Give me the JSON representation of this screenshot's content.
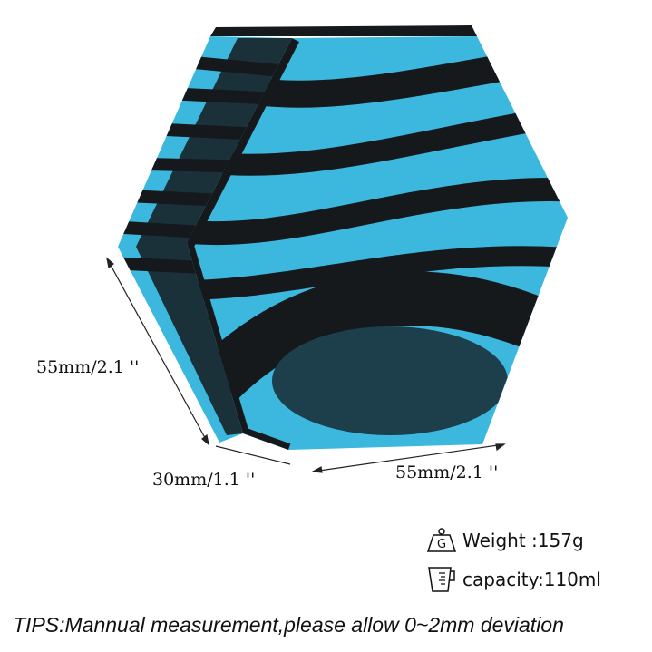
{
  "product": {
    "colors": {
      "blue": "#3cb8de",
      "black": "#15191c"
    },
    "dimensions": {
      "height_label": "55mm/2.1 ''",
      "depth_label": "30mm/1.1 ''",
      "width_label": "55mm/2.1 ''"
    }
  },
  "specs": {
    "weight": {
      "icon": "weight-icon",
      "label": "Weight :157g"
    },
    "capacity": {
      "icon": "measuring-cup-icon",
      "label": "capacity:110ml"
    }
  },
  "tips": "TIPS:Mannual measurement,please allow 0~2mm deviation"
}
